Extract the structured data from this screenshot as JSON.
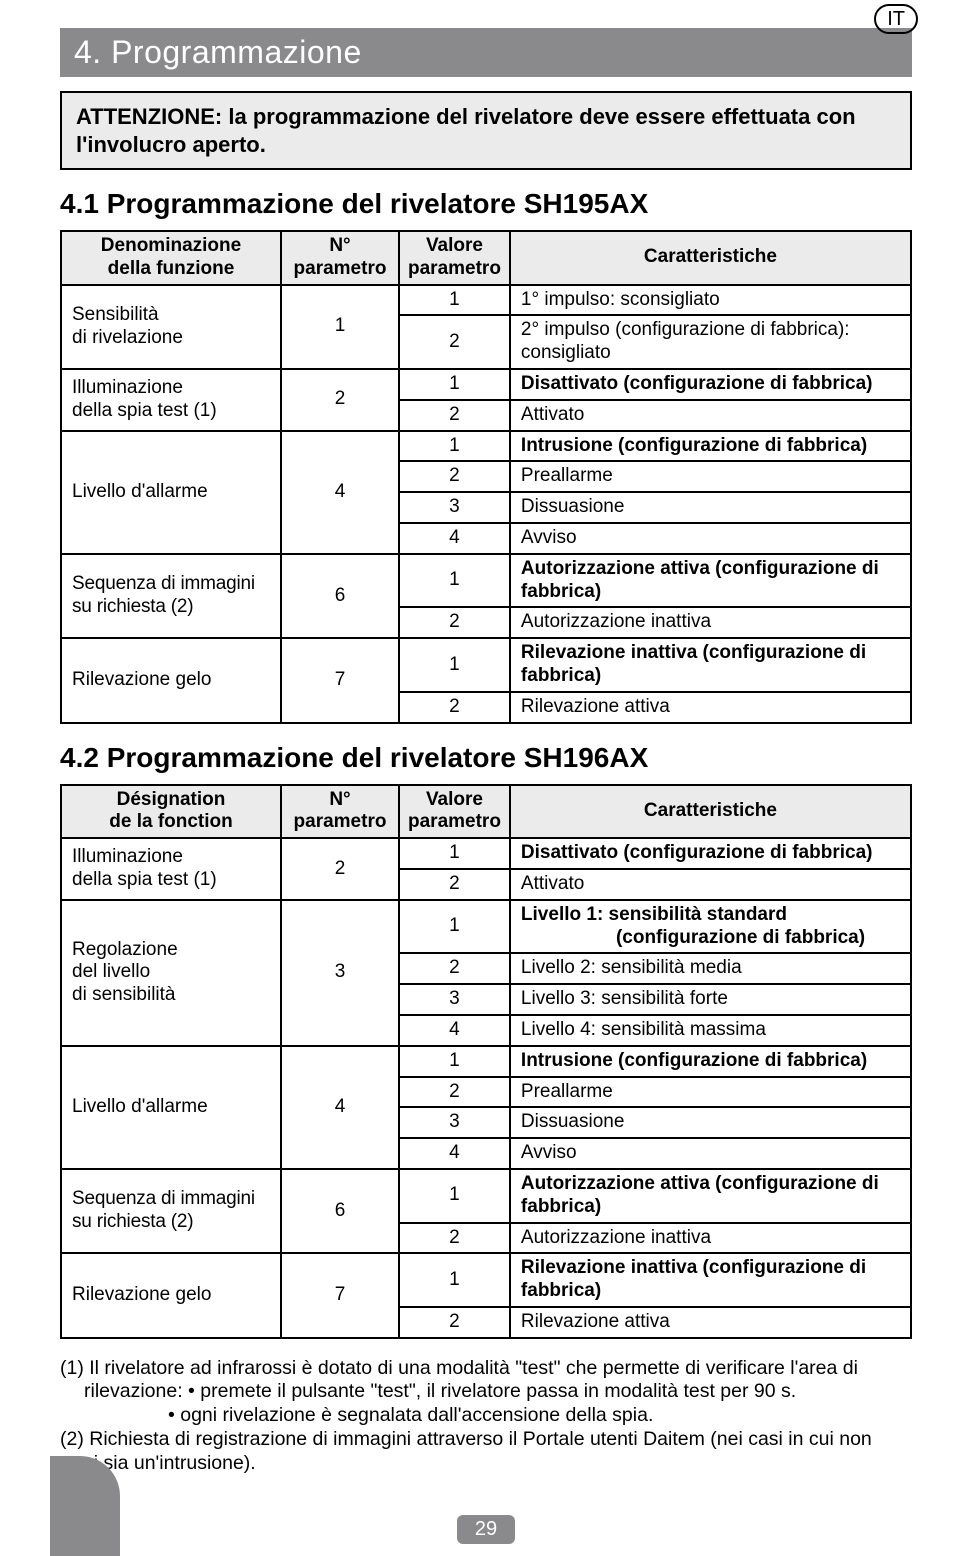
{
  "lang_badge": "IT",
  "section_title": "4. Programmazione",
  "note_text": "ATTENZIONE: la programmazione del rivelatore deve essere effettuata con l'involucro aperto.",
  "table1": {
    "heading": "4.1 Programmazione del rivelatore SH195AX",
    "headers": {
      "c1": "Denominazione della funzione",
      "c2": "N° parametro",
      "c3": "Valore parametro",
      "c4": "Caratteristiche"
    },
    "rows": [
      {
        "f": "Sensibilità di rivelazione",
        "n": "1",
        "vals": [
          {
            "v": "1",
            "c": "1° impulso: sconsigliato"
          },
          {
            "v": "2",
            "c": "2° impulso (configurazione di fabbrica): consigliato"
          }
        ]
      },
      {
        "f": "Illuminazione della spia test (1)",
        "n": "2",
        "vals": [
          {
            "v": "1",
            "c": "Disattivato (configurazione di fabbrica)"
          },
          {
            "v": "2",
            "c": "Attivato"
          }
        ]
      },
      {
        "f": "Livello d'allarme",
        "n": "4",
        "vals": [
          {
            "v": "1",
            "c": "Intrusione (configurazione di fabbrica)"
          },
          {
            "v": "2",
            "c": "Preallarme"
          },
          {
            "v": "3",
            "c": "Dissuasione"
          },
          {
            "v": "4",
            "c": "Avviso"
          }
        ]
      },
      {
        "f": "Sequenza di immagini su richiesta (2)",
        "n": "6",
        "vals": [
          {
            "v": "1",
            "c": "Autorizzazione attiva (configurazione di fabbrica)"
          },
          {
            "v": "2",
            "c": "Autorizzazione inattiva"
          }
        ]
      },
      {
        "f": "Rilevazione gelo",
        "n": "7",
        "vals": [
          {
            "v": "1",
            "c": "Rilevazione inattiva (configurazione di fabbrica)"
          },
          {
            "v": "2",
            "c": "Rilevazione attiva"
          }
        ]
      }
    ]
  },
  "table2": {
    "heading": "4.2 Programmazione del rivelatore SH196AX",
    "headers": {
      "c1": "Désignation de la fonction",
      "c2": "N° parametro",
      "c3": "Valore parametro",
      "c4": "Caratteristiche"
    },
    "rows": [
      {
        "f": "Illuminazione della spia test (1)",
        "n": "2",
        "vals": [
          {
            "v": "1",
            "c": "Disattivato (configurazione di fabbrica)"
          },
          {
            "v": "2",
            "c": "Attivato"
          }
        ]
      },
      {
        "f": "Regolazione del livello di sensibilità",
        "n": "3",
        "vals": [
          {
            "v": "1",
            "c": "Livello 1: sensibilità standard\n                  (configurazione di fabbrica)"
          },
          {
            "v": "2",
            "c": "Livello 2: sensibilità media"
          },
          {
            "v": "3",
            "c": "Livello 3: sensibilità forte"
          },
          {
            "v": "4",
            "c": "Livello 4: sensibilità massima"
          }
        ]
      },
      {
        "f": "Livello d'allarme",
        "n": "4",
        "vals": [
          {
            "v": "1",
            "c": "Intrusione (configurazione di fabbrica)"
          },
          {
            "v": "2",
            "c": "Preallarme"
          },
          {
            "v": "3",
            "c": "Dissuasione"
          },
          {
            "v": "4",
            "c": "Avviso"
          }
        ]
      },
      {
        "f": "Sequenza di immagini su richiesta (2)",
        "n": "6",
        "vals": [
          {
            "v": "1",
            "c": "Autorizzazione attiva (configurazione di fabbrica)"
          },
          {
            "v": "2",
            "c": "Autorizzazione inattiva"
          }
        ]
      },
      {
        "f": "Rilevazione gelo",
        "n": "7",
        "vals": [
          {
            "v": "1",
            "c": "Rilevazione inattiva (configurazione di fabbrica)"
          },
          {
            "v": "2",
            "c": "Rilevazione attiva"
          }
        ]
      }
    ]
  },
  "footnotes": {
    "f1_line1": "(1) Il rivelatore ad infrarossi è dotato di una modalità \"test\" che permette di verificare l'area di",
    "f1_line2": "rilevazione: • premete il pulsante \"test\", il rivelatore passa in modalità test per 90 s.",
    "f1_line3": "• ogni rivelazione è segnalata dall'accensione della spia.",
    "f2_line1": "(2) Richiesta di registrazione di immagini attraverso il Portale utenti Daitem (nei casi in cui non",
    "f2_line2": "vi sia un'intrusione)."
  },
  "page_number": "29",
  "colors": {
    "bar_bg": "#8a8a8c",
    "bar_fg": "#ffffff",
    "note_bg": "#ebebeb",
    "border": "#000000"
  }
}
